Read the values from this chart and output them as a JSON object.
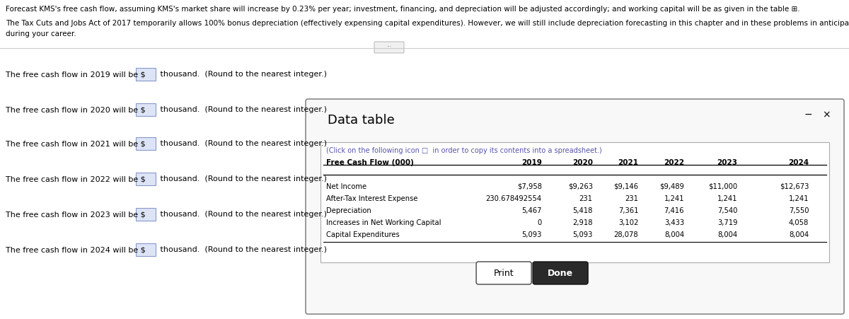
{
  "title_text": "Forecast KMS's free cash flow, assuming KMS's market share will increase by 0.23% per year; investment, financing, and depreciation will be adjusted accordingly; and working capital will be as given in the table ⊞.",
  "subtitle_line1": "The Tax Cuts and Jobs Act of 2017 temporarily allows 100% bonus depreciation (effectively expensing capital expenditures). However, we will still include depreciation forecasting in this chapter and in these problems in anticipation of the return of standard depreciation practices",
  "subtitle_line2": "during your career.",
  "left_lines": [
    "The free cash flow in 2019 will be $",
    "The free cash flow in 2020 will be $",
    "The free cash flow in 2021 will be $",
    "The free cash flow in 2022 will be $",
    "The free cash flow in 2023 will be $",
    "The free cash flow in 2024 will be $"
  ],
  "right_suffix": " thousand.  (Round to the nearest integer.)",
  "data_table_title": "Data table",
  "click_text": "(Click on the following icon □  in order to copy its contents into a spreadsheet.)",
  "table_header": [
    "Free Cash Flow (000)",
    "2019",
    "2020",
    "2021",
    "2022",
    "2023",
    "2024"
  ],
  "table_rows": [
    [
      "Net Income",
      "$7,958",
      "$9,263",
      "$9,146",
      "$9,489",
      "$11,000",
      "$12,673"
    ],
    [
      "After-Tax Interest Expense",
      "230.678492554",
      "231",
      "231",
      "1,241",
      "1,241",
      "1,241"
    ],
    [
      "Depreciation",
      "5,467",
      "5,418",
      "7,361",
      "7,416",
      "7,540",
      "7,550"
    ],
    [
      "Increases in Net Working Capital",
      "0",
      "2,918",
      "3,102",
      "3,433",
      "3,719",
      "4,058"
    ],
    [
      "Capital Expenditures",
      "5,093",
      "5,093",
      "28,078",
      "8,004",
      "8,004",
      "8,004"
    ]
  ],
  "bg_color": "#ffffff",
  "input_box_color": "#dde4f5",
  "input_box_border": "#8899cc",
  "dialog_bg": "#f8f8f8",
  "dialog_border": "#888888",
  "inner_box_border": "#aaaaaa",
  "text_color": "#000000",
  "click_text_color": "#5555aa",
  "print_btn_border": "#444444",
  "done_btn_bg": "#2a2a2a",
  "done_btn_text": "#ffffff"
}
